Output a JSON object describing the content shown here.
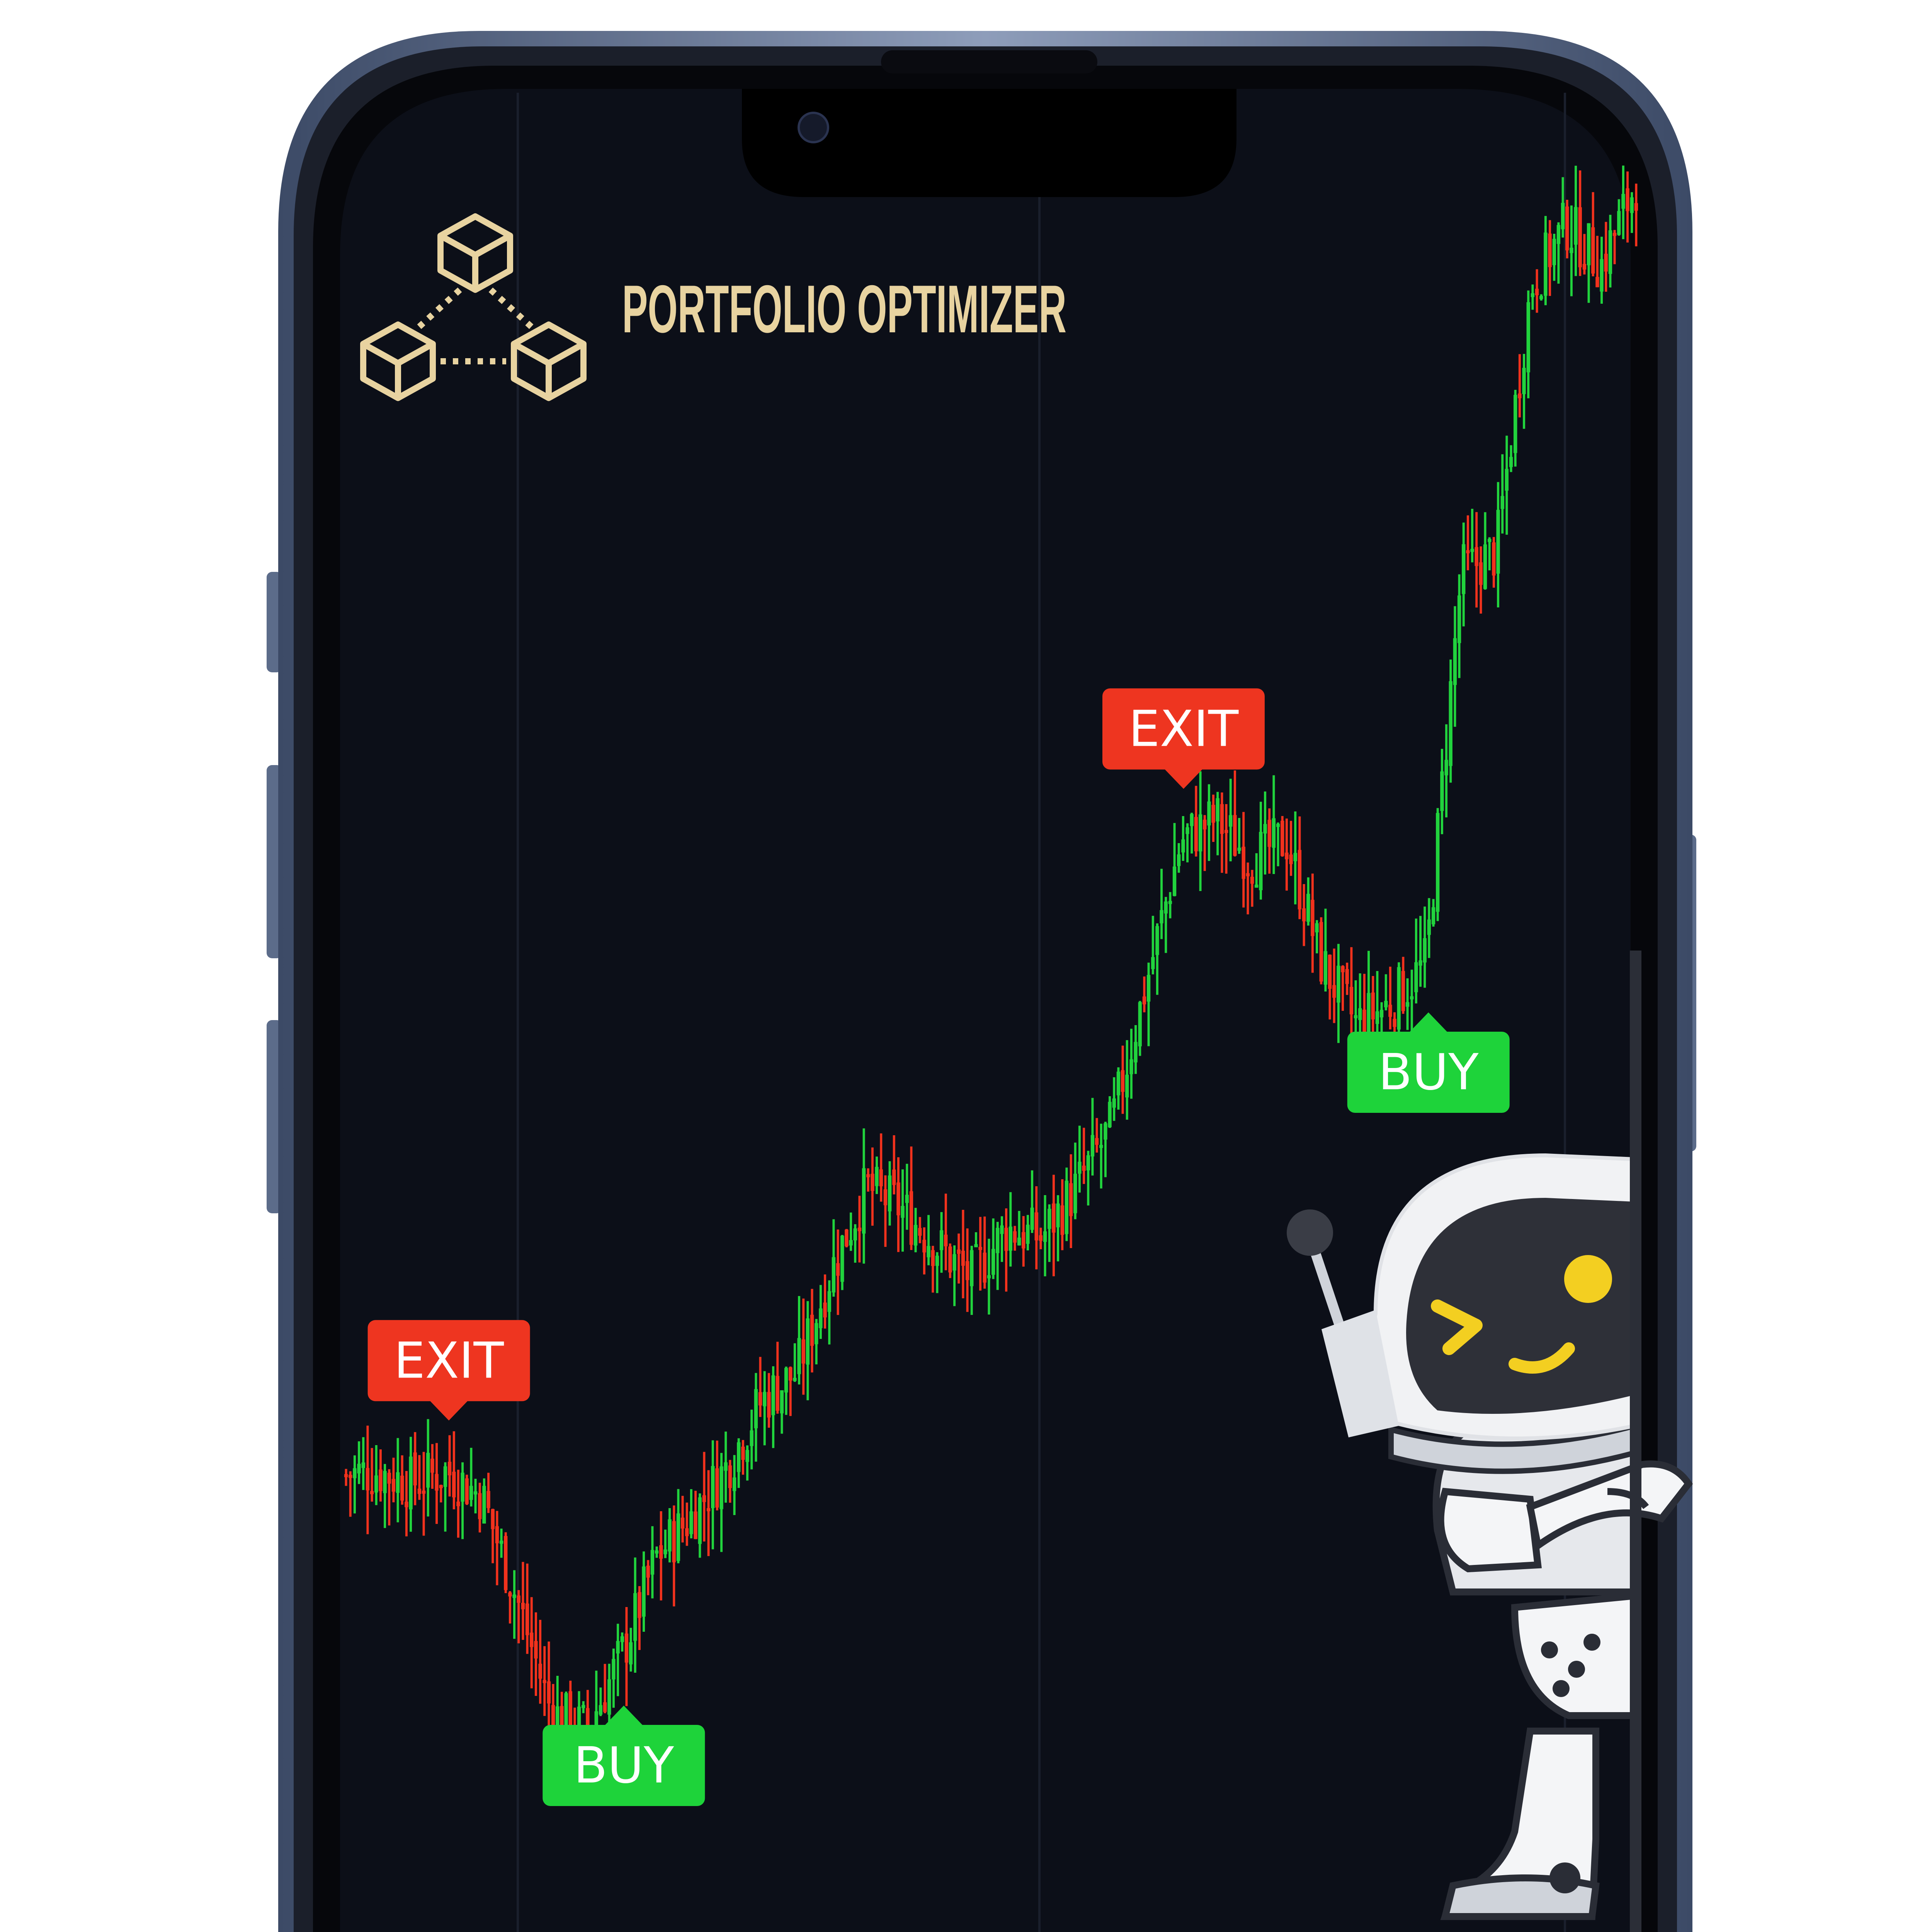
{
  "app": {
    "title": "PORTFOLIO OPTIMIZER",
    "logo_icon": "blockchain-cubes-icon"
  },
  "colors": {
    "screen_bg": "#0c0f18",
    "gold": "#e8d3a0",
    "up": "#21d33d",
    "down": "#f2321d",
    "buy_badge": "#1ed33a",
    "exit_badge": "#ee3520",
    "frame": "#4b5c7a",
    "frame_light": "#9aa9c2"
  },
  "signals": [
    {
      "type": "exit",
      "label": "EXIT"
    },
    {
      "type": "buy",
      "label": "BUY"
    },
    {
      "type": "exit",
      "label": "EXIT"
    },
    {
      "type": "buy",
      "label": "BUY"
    }
  ],
  "chart_data": {
    "type": "candlestick",
    "price_path": [
      1000,
      1010,
      980,
      1010,
      950,
      700,
      420,
      380,
      560,
      800,
      900,
      1020,
      1180,
      1250,
      1500,
      1700,
      1650,
      1560,
      1480,
      1600,
      1580,
      1700,
      1850,
      2200,
      2550,
      2600,
      2500,
      2550,
      2250,
      2100,
      2150,
      2250,
      3200,
      3250,
      3900,
      4050,
      3950,
      4150
    ],
    "signal_indices": [
      3,
      8,
      24,
      31
    ],
    "mascot": "astronaut-robot-mascot"
  }
}
